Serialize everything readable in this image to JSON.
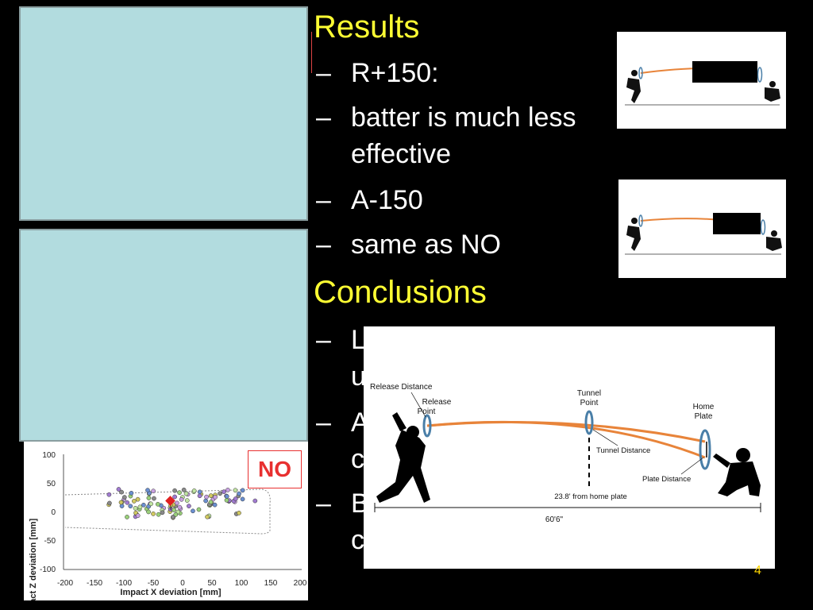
{
  "slide": {
    "results_heading": "Results",
    "results_bullets": [
      "R+150:",
      "batter is much less",
      "effective",
      "A-150",
      "same as NO"
    ],
    "conclusions_heading": "Conclusions",
    "conclusion_fragments": [
      "L",
      "u",
      "A",
      "c",
      "B",
      "c"
    ],
    "slide_number": "4"
  },
  "scatter": {
    "ylabel": "Impact Z deviation [mm]",
    "xlabel": "Impact X deviation [mm]",
    "xticks": [
      "-200",
      "-150",
      "-100",
      "-50",
      "0",
      "50",
      "100",
      "150",
      "200"
    ],
    "yticks": [
      "100",
      "50",
      "0",
      "-50",
      "-100"
    ],
    "badge": "NO"
  },
  "diagram": {
    "release_distance": "Release Distance",
    "release_point": "Release Point",
    "tunnel_point": "Tunnel Point",
    "home_plate": "Home Plate",
    "tunnel_distance": "Tunnel Distance",
    "plate_distance": "Plate Distance",
    "from_home": "23.8' from home plate",
    "length": "60'6\""
  },
  "colors": {
    "heading": "#ffff33",
    "panel": "#b2dcdf",
    "trajectory": "#e8843a",
    "ring": "#4a7fa8",
    "badge": "#e83030"
  }
}
